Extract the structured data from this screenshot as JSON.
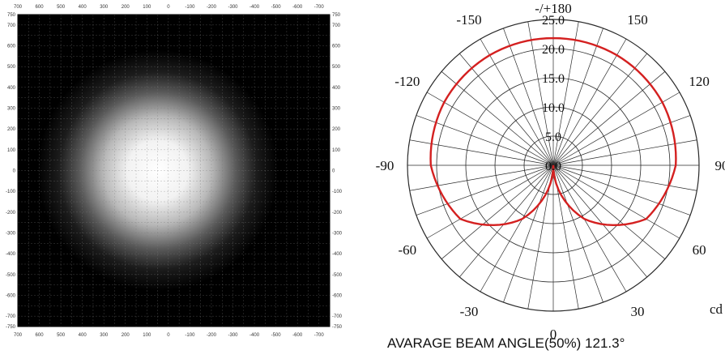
{
  "chart_data": [
    {
      "type": "heatmap",
      "title": "",
      "description_kind": "illuminance distribution",
      "x_ticks": [
        "700",
        "600",
        "500",
        "400",
        "300",
        "200",
        "100",
        "0",
        "-100",
        "-200",
        "-300",
        "-400",
        "-500",
        "-600",
        "-700"
      ],
      "y_ticks": [
        "750",
        "700",
        "600",
        "500",
        "400",
        "300",
        "200",
        "100",
        "0",
        "-100",
        "-200",
        "-300",
        "-400",
        "-500",
        "-600",
        "-700",
        "-750"
      ],
      "xlim": [
        700,
        -750
      ],
      "ylim": [
        -750,
        750
      ],
      "grid": true,
      "colors": {
        "background": "#000000",
        "peak": "#ffffff",
        "grid": "#7a7a7a"
      },
      "spot": {
        "center_x": 50,
        "center_y": 0,
        "core_radius": 180,
        "falloff_radius": 560
      }
    },
    {
      "type": "polar",
      "angle_labels": [
        {
          "angle": 180,
          "text": "-/+180"
        },
        {
          "angle": -150,
          "text": "-150"
        },
        {
          "angle": 150,
          "text": "150"
        },
        {
          "angle": -120,
          "text": "-120"
        },
        {
          "angle": 120,
          "text": "120"
        },
        {
          "angle": -90,
          "text": "-90"
        },
        {
          "angle": 90,
          "text": "90"
        },
        {
          "angle": -60,
          "text": "-60"
        },
        {
          "angle": 60,
          "text": "60"
        },
        {
          "angle": -30,
          "text": "-30"
        },
        {
          "angle": 30,
          "text": "30"
        },
        {
          "angle": 0,
          "text": "0"
        }
      ],
      "radial_labels": [
        "0.0",
        "5.0",
        "10.0",
        "15.0",
        "20.0",
        "25.0"
      ],
      "r_max": 25,
      "unit": "cd",
      "grid": true,
      "series": [
        {
          "color": "#d42020",
          "points": [
            {
              "angle": 0,
              "r": 0
            },
            {
              "angle": 30,
              "r": 10.6
            },
            {
              "angle": 60,
              "r": 18.4
            },
            {
              "angle": 90,
              "r": 21.0
            },
            {
              "angle": 120,
              "r": 21.6
            },
            {
              "angle": 150,
              "r": 21.8
            },
            {
              "angle": 180,
              "r": 21.8
            }
          ]
        }
      ],
      "caption": "AVARAGE BEAM ANGLE(50%) 121.3°"
    }
  ]
}
